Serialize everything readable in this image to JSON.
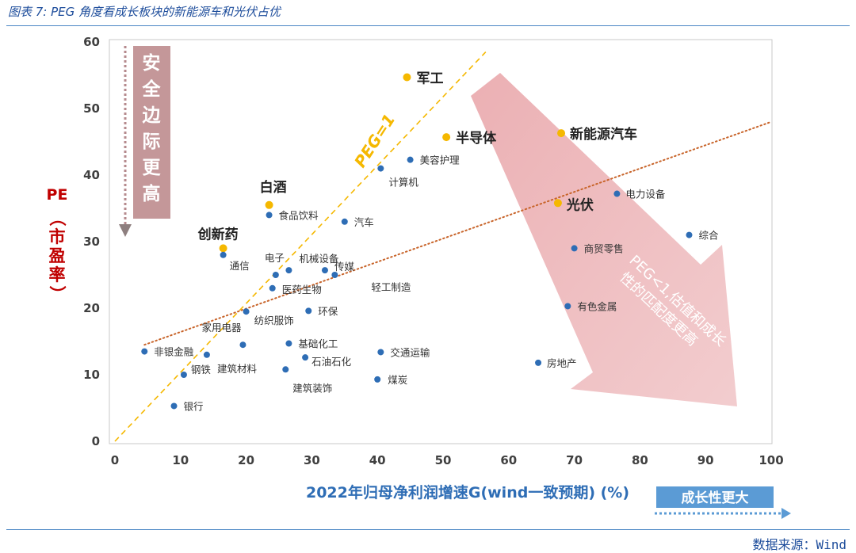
{
  "figure": {
    "title": "图表 7: PEG 角度看成长板块的新能源车和光伏占优",
    "source": "数据来源：Wind"
  },
  "chart_data": {
    "type": "scatter",
    "xlabel": "2022年归母净利润增速G(wind一致预期) (%)",
    "ylabel_top": "PE",
    "ylabel_chars": [
      "（",
      "市",
      "盈",
      "率",
      "）"
    ],
    "xlim": [
      0,
      100
    ],
    "ylim": [
      0,
      60
    ],
    "x_ticks": [
      0,
      10,
      20,
      30,
      40,
      50,
      60,
      70,
      80,
      90,
      100
    ],
    "y_ticks": [
      0,
      10,
      20,
      30,
      40,
      50,
      60
    ],
    "grid": false,
    "highlight_color": "#f5b800",
    "normal_color": "#2e6db5",
    "points": [
      {
        "label": "军工",
        "x": 44.5,
        "y": 54.7,
        "highlight": true
      },
      {
        "label": "半导体",
        "x": 50.5,
        "y": 45.7,
        "highlight": true
      },
      {
        "label": "新能源汽车",
        "x": 68,
        "y": 46.3,
        "highlight": true
      },
      {
        "label": "白酒",
        "x": 23.5,
        "y": 35.5,
        "highlight": true
      },
      {
        "label": "创新药",
        "x": 16.5,
        "y": 29,
        "highlight": true
      },
      {
        "label": "光伏",
        "x": 67.5,
        "y": 35.8,
        "highlight": true
      },
      {
        "label": "美容护理",
        "x": 45,
        "y": 42.3,
        "highlight": false
      },
      {
        "label": "计算机",
        "x": 40.5,
        "y": 41,
        "highlight": false
      },
      {
        "label": "食品饮料",
        "x": 23.5,
        "y": 34,
        "highlight": false
      },
      {
        "label": "汽车",
        "x": 35,
        "y": 33,
        "highlight": false
      },
      {
        "label": "电力设备",
        "x": 76.5,
        "y": 37.2,
        "highlight": false
      },
      {
        "label": "综合",
        "x": 87.5,
        "y": 31,
        "highlight": false
      },
      {
        "label": "商贸零售",
        "x": 70,
        "y": 29,
        "highlight": false
      },
      {
        "label": "通信",
        "x": 16.5,
        "y": 28,
        "highlight": false
      },
      {
        "label": "电子",
        "x": 24.5,
        "y": 25,
        "highlight": false
      },
      {
        "label": "机械设备",
        "x": 26.5,
        "y": 25.7,
        "highlight": false
      },
      {
        "label": "传媒",
        "x": 32,
        "y": 25.7,
        "highlight": false
      },
      {
        "label": "轻工制造",
        "x": 33.5,
        "y": 25,
        "highlight": false
      },
      {
        "label": "医药生物",
        "x": 24,
        "y": 23,
        "highlight": false
      },
      {
        "label": "纺织服饰",
        "x": 20,
        "y": 19.5,
        "highlight": false
      },
      {
        "label": "环保",
        "x": 29.5,
        "y": 19.6,
        "highlight": false
      },
      {
        "label": "家用电器",
        "x": 19.5,
        "y": 14.5,
        "highlight": false
      },
      {
        "label": "有色金属",
        "x": 69,
        "y": 20.3,
        "highlight": false
      },
      {
        "label": "非银金融",
        "x": 4.5,
        "y": 13.5,
        "highlight": false
      },
      {
        "label": "钢铁",
        "x": 14,
        "y": 13,
        "highlight": false
      },
      {
        "label": "基础化工",
        "x": 26.5,
        "y": 14.7,
        "highlight": false
      },
      {
        "label": "交通运输",
        "x": 40.5,
        "y": 13.4,
        "highlight": false
      },
      {
        "label": "石油石化",
        "x": 29,
        "y": 12.6,
        "highlight": false
      },
      {
        "label": "建筑材料",
        "x": 10.5,
        "y": 10,
        "highlight": false
      },
      {
        "label": "建筑装饰",
        "x": 26,
        "y": 10.8,
        "highlight": false
      },
      {
        "label": "房地产",
        "x": 64.5,
        "y": 11.8,
        "highlight": false
      },
      {
        "label": "煤炭",
        "x": 40,
        "y": 9.3,
        "highlight": false
      },
      {
        "label": "银行",
        "x": 9,
        "y": 5.3,
        "highlight": false
      }
    ],
    "peg1_line": {
      "label": "PEG=1",
      "x": [
        0,
        56.5
      ],
      "y": [
        0,
        58.5
      ],
      "color": "#f5b800"
    },
    "trend_line": {
      "x": [
        4.5,
        100
      ],
      "y": [
        14.5,
        48
      ],
      "color": "#c8642a"
    },
    "annotations": {
      "safety_margin": "安全边际更高",
      "peg_lt1": "PEG<1,估值和成长性的匹配度更高",
      "growth_bigger": "成长性更大"
    }
  }
}
